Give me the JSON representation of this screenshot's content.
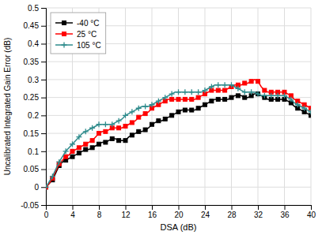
{
  "chart_data": {
    "type": "line",
    "xlabel": "DSA (dB)",
    "ylabel": "Uncalibrated Integrated Gain Error (dB)",
    "xlim": [
      0,
      40
    ],
    "ylim": [
      -0.05,
      0.5
    ],
    "xticks": [
      0,
      4,
      8,
      12,
      16,
      20,
      24,
      28,
      32,
      36,
      40
    ],
    "yticks": [
      -0.05,
      0,
      0.05,
      0.1,
      0.15,
      0.2,
      0.25,
      0.3,
      0.35,
      0.4,
      0.45,
      0.5
    ],
    "grid": true,
    "legend": "upper left",
    "x": [
      0,
      0.5,
      1,
      1.5,
      2,
      2.5,
      3,
      3.5,
      4,
      4.5,
      5,
      5.5,
      6,
      6.5,
      7,
      7.5,
      8,
      8.5,
      9,
      9.5,
      10,
      10.5,
      11,
      11.5,
      12,
      12.5,
      13,
      13.5,
      14,
      14.5,
      15,
      15.5,
      16,
      16.5,
      17,
      17.5,
      18,
      18.5,
      19,
      19.5,
      20,
      20.5,
      21,
      21.5,
      22,
      22.5,
      23,
      23.5,
      24,
      24.5,
      25,
      25.5,
      26,
      26.5,
      27,
      27.5,
      28,
      28.5,
      29,
      29.5,
      30,
      30.5,
      31,
      31.5,
      32,
      32.5,
      33,
      33.5,
      34,
      34.5,
      35,
      35.5,
      36,
      36.5,
      37,
      37.5,
      38,
      38.5,
      39,
      39.5,
      40
    ],
    "series": [
      {
        "name": "-40 °C",
        "color": "#000000",
        "marker": "square",
        "values": [
          0,
          0.01,
          0.02,
          0.04,
          0.06,
          0.07,
          0.075,
          0.08,
          0.085,
          0.09,
          0.095,
          0.1,
          0.105,
          0.105,
          0.11,
          0.115,
          0.12,
          0.125,
          0.125,
          0.13,
          0.135,
          0.135,
          0.13,
          0.13,
          0.13,
          0.14,
          0.145,
          0.15,
          0.155,
          0.155,
          0.16,
          0.165,
          0.175,
          0.18,
          0.185,
          0.185,
          0.19,
          0.195,
          0.2,
          0.205,
          0.21,
          0.215,
          0.215,
          0.215,
          0.215,
          0.215,
          0.22,
          0.225,
          0.23,
          0.235,
          0.24,
          0.245,
          0.245,
          0.245,
          0.245,
          0.245,
          0.25,
          0.255,
          0.255,
          0.255,
          0.25,
          0.25,
          0.255,
          0.26,
          0.26,
          0.255,
          0.25,
          0.245,
          0.245,
          0.245,
          0.245,
          0.245,
          0.245,
          0.24,
          0.235,
          0.225,
          0.22,
          0.215,
          0.21,
          0.205,
          0.2
        ]
      },
      {
        "name": "25 °C",
        "color": "#ff0000",
        "marker": "square",
        "values": [
          0,
          0.01,
          0.025,
          0.045,
          0.065,
          0.075,
          0.085,
          0.09,
          0.1,
          0.105,
          0.11,
          0.115,
          0.12,
          0.125,
          0.13,
          0.14,
          0.15,
          0.155,
          0.155,
          0.16,
          0.165,
          0.165,
          0.165,
          0.165,
          0.17,
          0.175,
          0.18,
          0.185,
          0.195,
          0.2,
          0.205,
          0.21,
          0.22,
          0.225,
          0.23,
          0.235,
          0.24,
          0.245,
          0.245,
          0.245,
          0.245,
          0.245,
          0.245,
          0.245,
          0.245,
          0.245,
          0.25,
          0.255,
          0.26,
          0.265,
          0.27,
          0.27,
          0.27,
          0.27,
          0.27,
          0.275,
          0.28,
          0.285,
          0.285,
          0.285,
          0.29,
          0.29,
          0.295,
          0.3,
          0.295,
          0.28,
          0.27,
          0.265,
          0.265,
          0.265,
          0.265,
          0.265,
          0.265,
          0.26,
          0.255,
          0.245,
          0.24,
          0.235,
          0.23,
          0.225,
          0.22
        ]
      },
      {
        "name": "105 °C",
        "color": "#2e8b8c",
        "marker": "plus",
        "values": [
          0,
          0.015,
          0.03,
          0.05,
          0.07,
          0.085,
          0.1,
          0.11,
          0.12,
          0.13,
          0.14,
          0.15,
          0.155,
          0.16,
          0.165,
          0.17,
          0.175,
          0.175,
          0.175,
          0.175,
          0.175,
          0.18,
          0.185,
          0.19,
          0.2,
          0.205,
          0.21,
          0.215,
          0.22,
          0.225,
          0.225,
          0.225,
          0.23,
          0.235,
          0.24,
          0.245,
          0.25,
          0.255,
          0.26,
          0.265,
          0.265,
          0.265,
          0.265,
          0.265,
          0.265,
          0.265,
          0.265,
          0.265,
          0.27,
          0.275,
          0.28,
          0.285,
          0.285,
          0.285,
          0.285,
          0.285,
          0.285,
          0.28,
          0.275,
          0.27,
          0.265,
          0.265,
          0.265,
          0.265,
          0.26,
          0.255,
          0.255,
          0.255,
          0.255,
          0.255,
          0.255,
          0.255,
          0.255,
          0.25,
          0.245,
          0.235,
          0.23,
          0.225,
          0.22,
          0.215,
          0.21
        ]
      }
    ]
  }
}
